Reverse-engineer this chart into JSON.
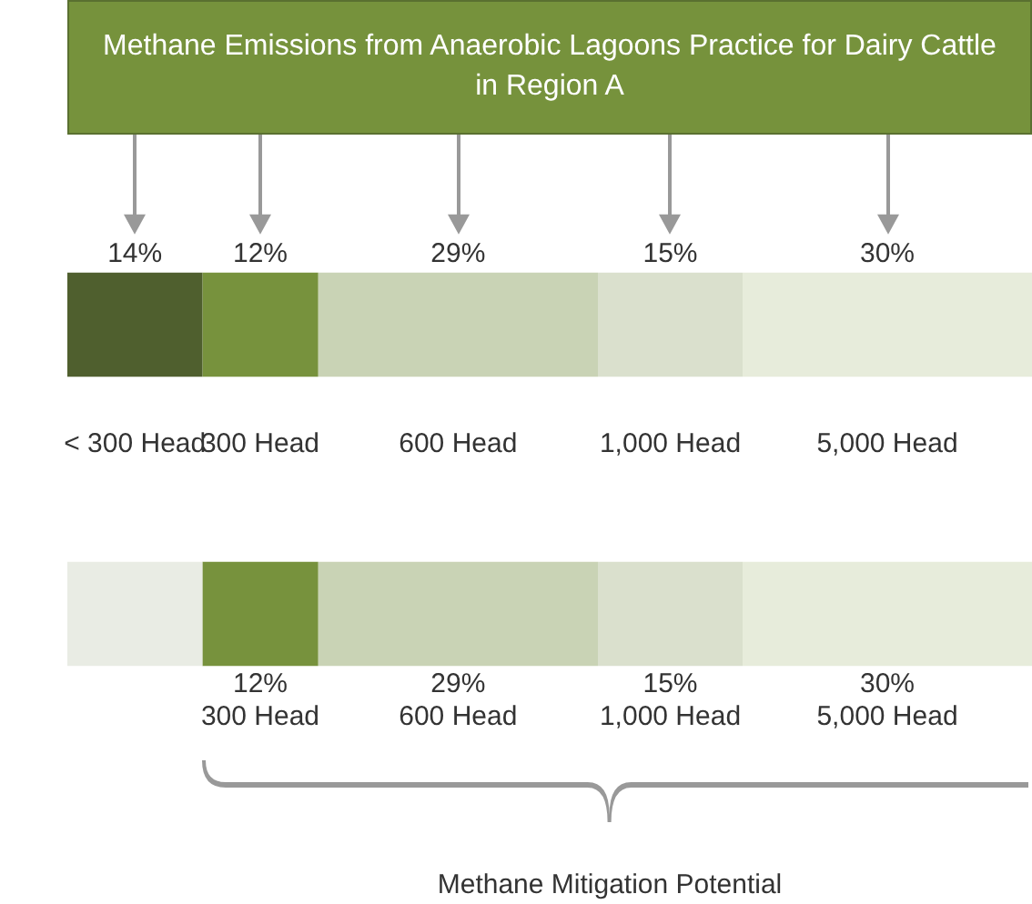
{
  "chart_data": {
    "type": "bar",
    "title": "Methane Emissions from Anaerobic Lagoons Practice for Dairy Cattle in Region A",
    "orientation": "horizontal",
    "stacked": true,
    "categories": [
      null,
      null
    ],
    "tick_labels": false,
    "legend": false,
    "series": [
      {
        "name": "< 300 Head",
        "colors": [
          "#4f5f2e",
          "#e9ece4"
        ],
        "values": [
          14,
          14
        ],
        "value_labels": [
          "14%",
          null
        ]
      },
      {
        "name": "300 Head",
        "colors": [
          "#77923d",
          "#77923d"
        ],
        "values": [
          12,
          12
        ],
        "value_labels": [
          "12%",
          "12%"
        ]
      },
      {
        "name": "600 Head",
        "colors": [
          "#c9d3b5",
          "#c9d3b5"
        ],
        "values": [
          29,
          29
        ],
        "value_labels": [
          "29%",
          "29%"
        ]
      },
      {
        "name": "1,000 Head",
        "colors": [
          "#dae0cd",
          "#dae0cd"
        ],
        "values": [
          15,
          15
        ],
        "value_labels": [
          "15%",
          "15%"
        ]
      },
      {
        "name": "5,000 Head",
        "colors": [
          "#e7ecdb",
          "#e7ecdb"
        ],
        "values": [
          30,
          30
        ],
        "value_labels": [
          "30%",
          "30%"
        ]
      }
    ],
    "annotations": [
      "Methane Mitigation Potential"
    ]
  }
}
